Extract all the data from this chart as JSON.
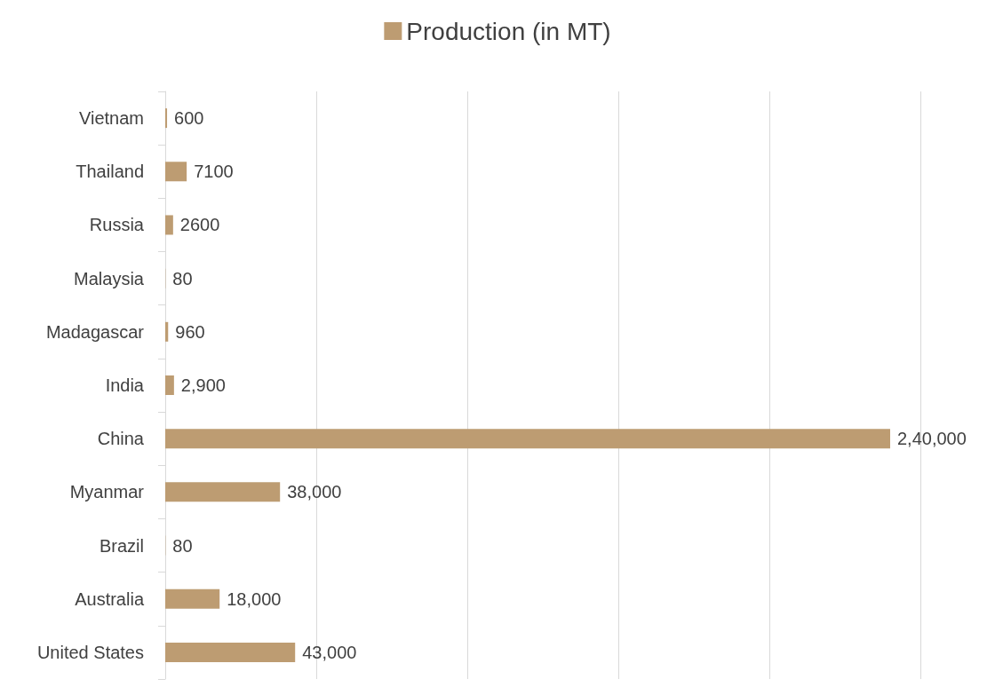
{
  "chart_data": {
    "type": "bar",
    "orientation": "horizontal",
    "categories": [
      "Vietnam",
      "Thailand",
      "Russia",
      "Malaysia",
      "Madagascar",
      "India",
      "China",
      "Myanmar",
      "Brazil",
      "Australia",
      "United States"
    ],
    "series": [
      {
        "name": "Production (in MT)",
        "color": "#bd9c72",
        "values": [
          600,
          7100,
          2600,
          80,
          960,
          2900,
          240000,
          38000,
          80,
          18000,
          43000
        ],
        "value_labels": [
          "600",
          "7100",
          "2600",
          "80",
          "960",
          "2,900",
          "2,40,000",
          "38,000",
          "80",
          "18,000",
          "43,000"
        ]
      }
    ],
    "xlim": [
      0,
      250000
    ],
    "xticks": [
      {
        "value": 0,
        "label": null
      },
      {
        "value": 50000,
        "label": null
      },
      {
        "value": 100000,
        "label": null
      },
      {
        "value": 150000,
        "label": null
      },
      {
        "value": 200000,
        "label": null
      },
      {
        "value": 250000,
        "label": null
      }
    ],
    "tick_labels": "y",
    "grid": "x",
    "legend": "top"
  }
}
